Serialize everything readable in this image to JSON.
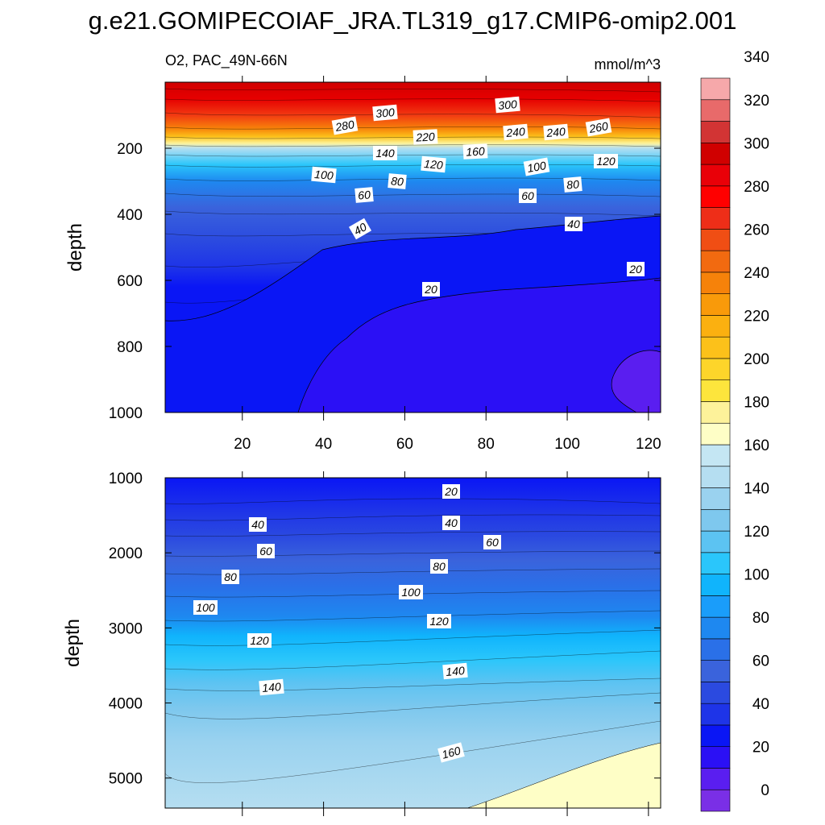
{
  "chart_data": {
    "type": "contour",
    "title": "g.e21.GOMIPECOIAF_JRA.TL319_g17.CMIP6-omip2.001",
    "variable_label": "O2, PAC_49N-66N",
    "units_label": "mmol/m^3",
    "ylabel": "depth",
    "x_ticks": [
      "20",
      "40",
      "60",
      "80",
      "100",
      "120"
    ],
    "xlim": [
      1,
      123
    ],
    "upper_panel": {
      "ylim": [
        1000,
        0
      ],
      "y_ticks": [
        "200",
        "400",
        "600",
        "800",
        "1000"
      ],
      "contour_labels": [
        "300",
        "300",
        "280",
        "220",
        "240",
        "240",
        "260",
        "140",
        "160",
        "120",
        "100",
        "100",
        "120",
        "80",
        "80",
        "60",
        "60",
        "40",
        "40",
        "20",
        "20"
      ]
    },
    "lower_panel": {
      "ylim": [
        1000,
        5400
      ],
      "y_ticks": [
        "1000",
        "2000",
        "3000",
        "4000",
        "5000"
      ],
      "contour_labels": [
        "20",
        "40",
        "40",
        "60",
        "60",
        "80",
        "80",
        "100",
        "100",
        "120",
        "120",
        "140",
        "140",
        "160"
      ]
    },
    "colorbar": {
      "ticks": [
        "0",
        "20",
        "40",
        "60",
        "80",
        "100",
        "120",
        "140",
        "160",
        "180",
        "200",
        "220",
        "240",
        "260",
        "280",
        "300",
        "320",
        "340"
      ],
      "colors": [
        "#7a2fe6",
        "#5a1ef0",
        "#2b10f5",
        "#0a16f5",
        "#1e34e8",
        "#2b4ae0",
        "#3a63dc",
        "#2a70e8",
        "#1e88f0",
        "#1a9dfa",
        "#10b4fc",
        "#2ac6fb",
        "#5cc3f2",
        "#7ec8ee",
        "#9ad2ef",
        "#b5def1",
        "#c4e6f3",
        "#fefec6",
        "#fdf29a",
        "#fde53c",
        "#fdd52a",
        "#fcc11a",
        "#fbb010",
        "#f99a0a",
        "#f6820a",
        "#f26a10",
        "#f04e14",
        "#ee2e18",
        "#ff0000",
        "#e90008",
        "#d00000",
        "#d23434",
        "#e86a6a",
        "#f6a8aa"
      ]
    }
  }
}
